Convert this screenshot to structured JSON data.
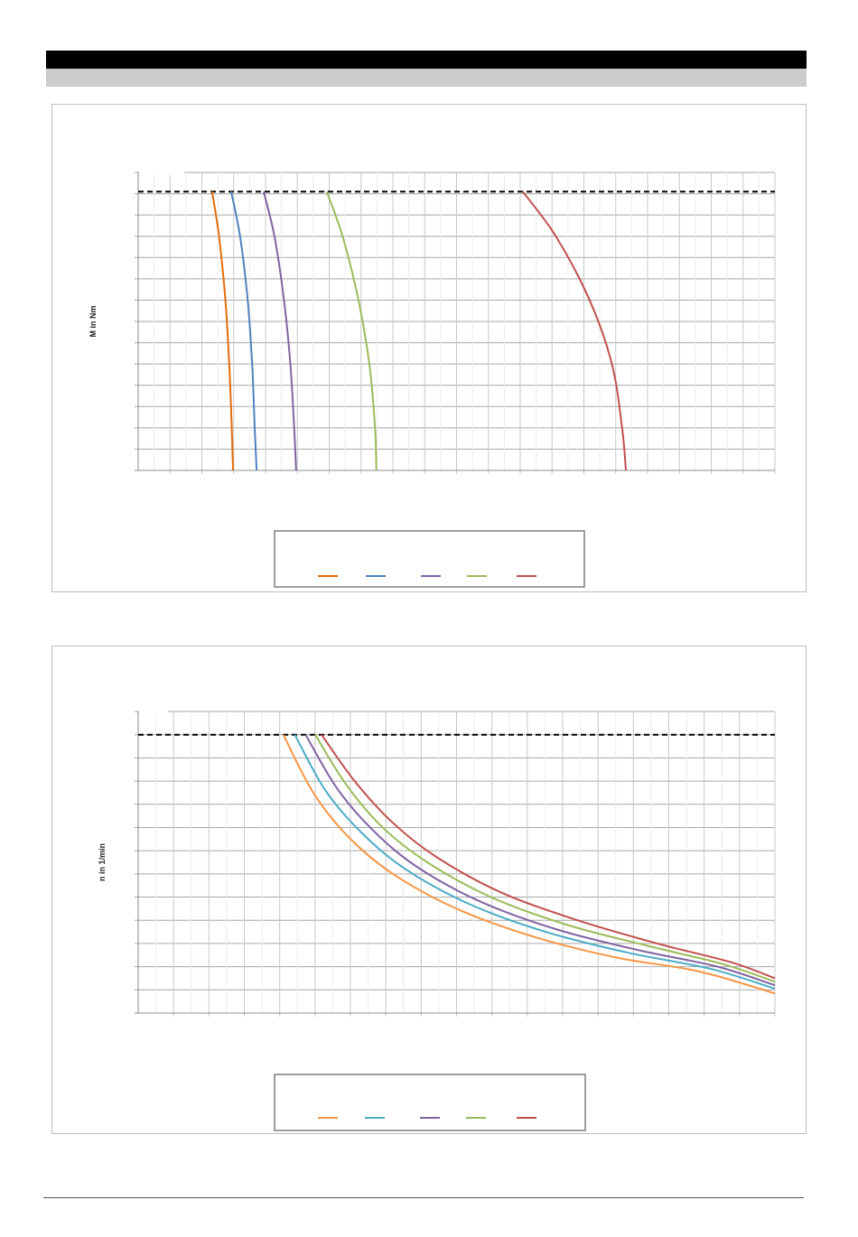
{
  "header": {
    "bar_color": "#000000",
    "subbar_color": "#cccccc"
  },
  "chart_data": [
    {
      "type": "line",
      "title": "",
      "xlabel": "",
      "ylabel": "M in Nm",
      "xlim": [
        0,
        100
      ],
      "ylim": [
        0,
        14
      ],
      "grid": true,
      "legend": "bottom-center",
      "limit_line": {
        "y": 13.1,
        "style": "dashed",
        "color": "#000000"
      },
      "series": [
        {
          "color": "#e46c0a",
          "x": [
            11.6,
            12.7,
            13.7,
            14.3,
            14.7,
            14.9
          ],
          "y": [
            13.1,
            11.0,
            8.0,
            5.0,
            2.0,
            0.0
          ]
        },
        {
          "color": "#4f81bd",
          "x": [
            14.6,
            16.0,
            17.2,
            17.9,
            18.3,
            18.6
          ],
          "y": [
            13.1,
            11.0,
            8.0,
            5.0,
            2.0,
            0.0
          ]
        },
        {
          "color": "#8064a2",
          "x": [
            19.7,
            21.4,
            22.9,
            23.9,
            24.5,
            24.8
          ],
          "y": [
            13.1,
            11.0,
            8.0,
            5.0,
            2.0,
            0.0
          ]
        },
        {
          "color": "#9bbb59",
          "x": [
            29.6,
            32.1,
            34.6,
            36.3,
            37.2,
            37.4
          ],
          "y": [
            13.1,
            11.0,
            8.0,
            5.0,
            2.0,
            0.0
          ]
        },
        {
          "color": "#c0504d",
          "x": [
            60.4,
            65.6,
            70.9,
            74.4,
            76.0,
            76.6
          ],
          "y": [
            13.1,
            11.0,
            8.0,
            5.0,
            2.0,
            0.0
          ]
        }
      ]
    },
    {
      "type": "line",
      "title": "",
      "xlabel": "",
      "ylabel": "n in 1/min",
      "xlim": [
        0,
        100
      ],
      "ylim": [
        0,
        13
      ],
      "grid": true,
      "legend": "bottom-center",
      "limit_line": {
        "y": 12.0,
        "style": "dashed",
        "color": "#000000"
      },
      "series": [
        {
          "color": "#f79646",
          "x": [
            22.8,
            27.5,
            33.0,
            40.0,
            50.0,
            62.0,
            75.0,
            88.0,
            100.0
          ],
          "y": [
            12.0,
            9.5,
            7.6,
            6.0,
            4.5,
            3.3,
            2.4,
            1.8,
            0.85
          ]
        },
        {
          "color": "#4bacc6",
          "x": [
            24.6,
            29.4,
            35.0,
            42.0,
            52.0,
            64.0,
            77.0,
            90.0,
            100.0
          ],
          "y": [
            12.0,
            9.6,
            7.8,
            6.2,
            4.7,
            3.5,
            2.6,
            1.9,
            1.05
          ]
        },
        {
          "color": "#8064a2",
          "x": [
            26.3,
            31.2,
            36.8,
            43.8,
            53.8,
            65.8,
            78.8,
            91.0,
            100.0
          ],
          "y": [
            12.0,
            9.7,
            7.9,
            6.3,
            4.8,
            3.6,
            2.7,
            2.0,
            1.2
          ]
        },
        {
          "color": "#9bbb59",
          "x": [
            27.8,
            32.8,
            38.4,
            45.4,
            55.4,
            67.4,
            80.0,
            92.0,
            100.0
          ],
          "y": [
            12.0,
            9.8,
            8.0,
            6.5,
            5.0,
            3.8,
            2.9,
            2.1,
            1.35
          ]
        },
        {
          "color": "#c0504d",
          "x": [
            28.8,
            34.0,
            40.0,
            47.0,
            57.0,
            69.0,
            81.5,
            93.0,
            100.0
          ],
          "y": [
            12.0,
            10.0,
            8.2,
            6.7,
            5.2,
            4.0,
            3.0,
            2.2,
            1.5
          ]
        }
      ]
    }
  ]
}
